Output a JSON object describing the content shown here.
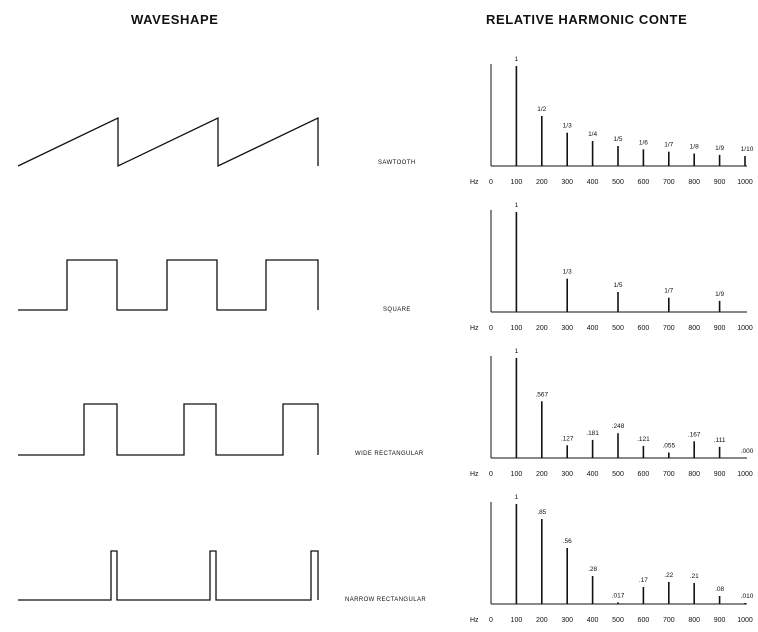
{
  "headings": {
    "left": "WAVESHAPE",
    "right": "RELATIVE HARMONIC CONTE"
  },
  "hz_label": "Hz",
  "freq_ticks": [
    "0",
    "100",
    "200",
    "300",
    "400",
    "500",
    "600",
    "700",
    "800",
    "900",
    "1000"
  ],
  "colors": {
    "ink": "#111111",
    "background": "#ffffff"
  },
  "waveforms": [
    {
      "name": "SAWTOOTH",
      "shape": "sawtooth"
    },
    {
      "name": "SQUARE",
      "shape": "square"
    },
    {
      "name": "WIDE RECTANGULAR",
      "shape": "wide-rectangular"
    },
    {
      "name": "NARROW RECTANGULAR",
      "shape": "narrow-rectangular"
    }
  ],
  "chart_data": [
    {
      "type": "bar",
      "title": "SAWTOOTH",
      "xlabel": "Hz",
      "x": [
        100,
        200,
        300,
        400,
        500,
        600,
        700,
        800,
        900,
        1000
      ],
      "values": [
        1,
        0.5,
        0.333,
        0.25,
        0.2,
        0.167,
        0.143,
        0.125,
        0.111,
        0.1
      ],
      "labels": [
        "1",
        "1/2",
        "1/3",
        "1/4",
        "1/5",
        "1/6",
        "1/7",
        "1/8",
        "1/9",
        "1/10"
      ],
      "xlim": [
        0,
        1000
      ],
      "ylim": [
        0,
        1
      ]
    },
    {
      "type": "bar",
      "title": "SQUARE",
      "xlabel": "Hz",
      "x": [
        100,
        300,
        500,
        700,
        900
      ],
      "values": [
        1,
        0.333,
        0.2,
        0.143,
        0.111
      ],
      "labels": [
        "1",
        "1/3",
        "1/5",
        "1/7",
        "1/9"
      ],
      "xlim": [
        0,
        1000
      ],
      "ylim": [
        0,
        1
      ]
    },
    {
      "type": "bar",
      "title": "WIDE RECTANGULAR",
      "xlabel": "Hz",
      "x": [
        100,
        200,
        300,
        400,
        500,
        600,
        700,
        800,
        900,
        1000
      ],
      "values": [
        1,
        0.567,
        0.127,
        0.181,
        0.248,
        0.121,
        0.055,
        0.167,
        0.111,
        0.0
      ],
      "labels": [
        "1",
        ".567",
        ".127",
        ".181",
        ".248",
        ".121",
        ".055",
        ".167",
        ".111",
        ".000"
      ],
      "xlim": [
        0,
        1000
      ],
      "ylim": [
        0,
        1
      ]
    },
    {
      "type": "bar",
      "title": "NARROW RECTANGULAR",
      "xlabel": "Hz",
      "x": [
        100,
        200,
        300,
        400,
        500,
        600,
        700,
        800,
        900,
        1000
      ],
      "values": [
        1,
        0.85,
        0.56,
        0.28,
        0.017,
        0.17,
        0.22,
        0.21,
        0.08,
        0.01
      ],
      "labels": [
        "1",
        ".85",
        ".56",
        ".28",
        ".017",
        ".17",
        ".22",
        ".21",
        ".08",
        ".010"
      ],
      "xlim": [
        0,
        1000
      ],
      "ylim": [
        0,
        1
      ]
    }
  ]
}
